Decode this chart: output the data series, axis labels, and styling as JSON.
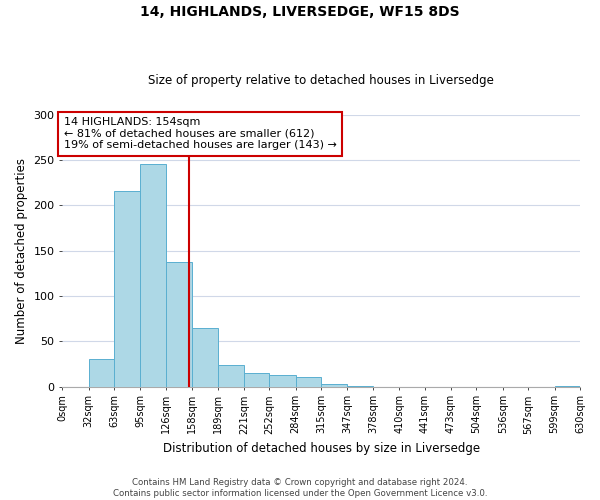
{
  "title": "14, HIGHLANDS, LIVERSEDGE, WF15 8DS",
  "subtitle": "Size of property relative to detached houses in Liversedge",
  "xlabel": "Distribution of detached houses by size in Liversedge",
  "ylabel": "Number of detached properties",
  "bar_color": "#add8e6",
  "bar_edge_color": "#5aafd0",
  "background_color": "#ffffff",
  "grid_color": "#d0d8e8",
  "vline_x": 154,
  "vline_color": "#cc0000",
  "bin_edges": [
    0,
    32,
    63,
    95,
    126,
    158,
    189,
    221,
    252,
    284,
    315,
    347,
    378,
    410,
    441,
    473,
    504,
    536,
    567,
    599,
    630
  ],
  "bar_heights": [
    0,
    30,
    216,
    245,
    137,
    65,
    24,
    15,
    13,
    10,
    3,
    1,
    0,
    0,
    0,
    0,
    0,
    0,
    0,
    1
  ],
  "ylim": [
    0,
    300
  ],
  "yticks": [
    0,
    50,
    100,
    150,
    200,
    250,
    300
  ],
  "annotation_line1": "14 HIGHLANDS: 154sqm",
  "annotation_line2": "← 81% of detached houses are smaller (612)",
  "annotation_line3": "19% of semi-detached houses are larger (143) →",
  "annotation_box_color": "#ffffff",
  "annotation_box_edge": "#cc0000",
  "footer_text": "Contains HM Land Registry data © Crown copyright and database right 2024.\nContains public sector information licensed under the Open Government Licence v3.0.",
  "tick_labels": [
    "0sqm",
    "32sqm",
    "63sqm",
    "95sqm",
    "126sqm",
    "158sqm",
    "189sqm",
    "221sqm",
    "252sqm",
    "284sqm",
    "315sqm",
    "347sqm",
    "378sqm",
    "410sqm",
    "441sqm",
    "473sqm",
    "504sqm",
    "536sqm",
    "567sqm",
    "599sqm",
    "630sqm"
  ]
}
